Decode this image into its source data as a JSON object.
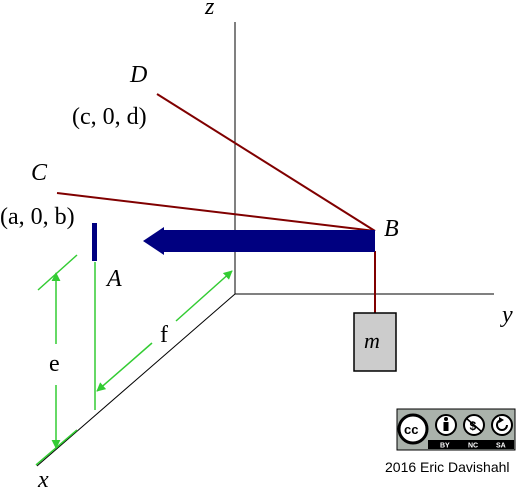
{
  "axes": {
    "x": "x",
    "y": "y",
    "z": "z"
  },
  "points": {
    "A": "A",
    "B": "B",
    "C": "C",
    "D": "D"
  },
  "coordinates": {
    "C": "(a, 0, b)",
    "D": "(c, 0, d)"
  },
  "dimensions": {
    "e": "e",
    "f": "f"
  },
  "mass": "m",
  "license": {
    "badge": "cc",
    "conditions": [
      "BY",
      "NC",
      "SA"
    ]
  },
  "credit": "2016 Eric Davishahl",
  "colors": {
    "axis": "#000000",
    "boom": "#000080",
    "cable": "#800000",
    "dimension": "#33cc33",
    "mass_fill": "#cccccc"
  },
  "icons": [
    "cc-icon",
    "attribution-icon",
    "noncommercial-icon",
    "sharealike-icon"
  ]
}
